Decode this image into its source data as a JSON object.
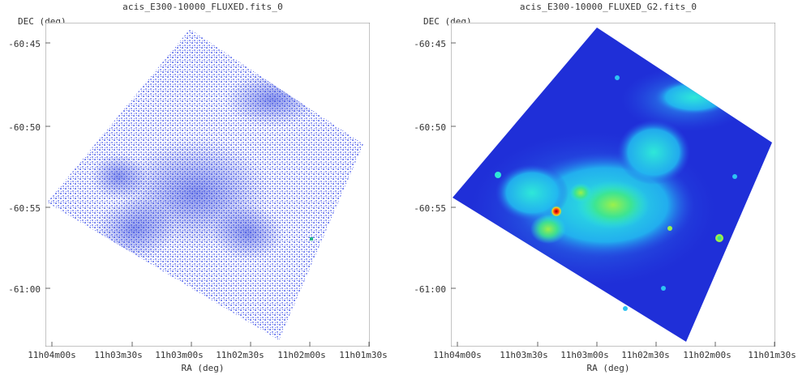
{
  "panels": [
    {
      "title": "acis_E300-10000_FLUXED.fits_0",
      "ylabel": "DEC (deg)",
      "xlabel": "RA (deg)",
      "yticks": [
        "-60:45",
        "-60:50",
        "-60:55",
        "-61:00"
      ],
      "xticks": [
        "11h04m00s",
        "11h03m30s",
        "11h03m00s",
        "11h02m30s",
        "11h02m00s",
        "11h01m30s"
      ],
      "colormap": "blue-sparse"
    },
    {
      "title": "acis_E300-10000_FLUXED_G2.fits_0",
      "ylabel": "DEC (deg)",
      "xlabel": "RA (deg)",
      "yticks": [
        "-60:45",
        "-60:50",
        "-60:55",
        "-61:00"
      ],
      "xticks": [
        "11h04m00s",
        "11h03m30s",
        "11h03m00s",
        "11h02m30s",
        "11h02m00s",
        "11h01m30s"
      ],
      "colormap": "jet-smoothed"
    }
  ],
  "colors": {
    "frame": "#888888",
    "sparse_blue": "#3a4fd8",
    "deep_blue": "#1e2fd6",
    "cyan": "#28e6e6",
    "green": "#3ee88a",
    "hot": "#ff3b1a"
  }
}
